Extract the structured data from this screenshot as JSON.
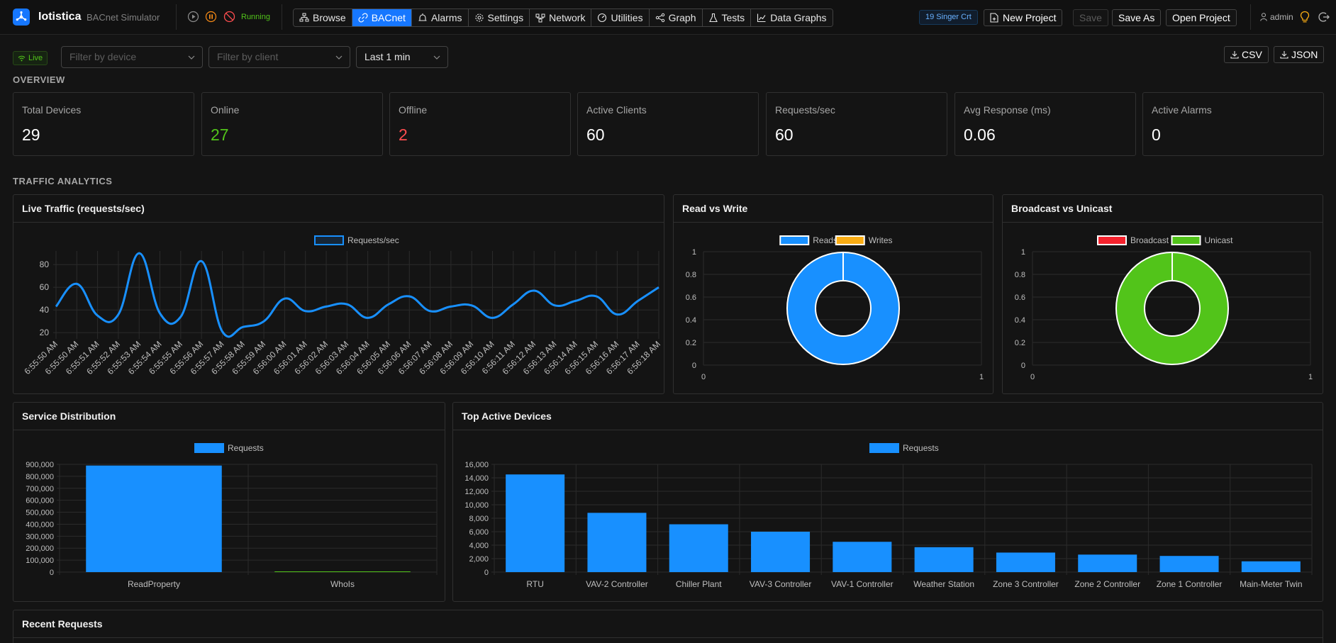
{
  "app": {
    "name": "Iotistica",
    "subtitle": "BACnet Simulator",
    "status": "Running"
  },
  "nav": [
    {
      "label": "Browse",
      "icon": "sitemap-icon"
    },
    {
      "label": "BACnet",
      "icon": "link-icon"
    },
    {
      "label": "Alarms",
      "icon": "alarm-icon"
    },
    {
      "label": "Settings",
      "icon": "gear-icon"
    },
    {
      "label": "Network",
      "icon": "network-icon"
    },
    {
      "label": "Utilities",
      "icon": "gauge-icon"
    },
    {
      "label": "Graph",
      "icon": "share-icon"
    },
    {
      "label": "Tests",
      "icon": "flask-icon"
    },
    {
      "label": "Data Graphs",
      "icon": "line-chart-icon"
    }
  ],
  "nav_active": "BACnet",
  "toolbar": {
    "site": "19 Singer Crt",
    "new_project": "New Project",
    "save": "Save",
    "save_as": "Save As",
    "open_project": "Open Project",
    "user": "admin"
  },
  "filters": {
    "live": "Live",
    "device_placeholder": "Filter by device",
    "client_placeholder": "Filter by client",
    "range": "Last 1 min",
    "csv": "CSV",
    "json": "JSON"
  },
  "overview": {
    "title": "OVERVIEW",
    "cards": [
      {
        "label": "Total Devices",
        "value": "29",
        "color": "#ffffff"
      },
      {
        "label": "Online",
        "value": "27",
        "color": "#52c41a"
      },
      {
        "label": "Offline",
        "value": "2",
        "color": "#ff4d4f"
      },
      {
        "label": "Active Clients",
        "value": "60",
        "color": "#ffffff"
      },
      {
        "label": "Requests/sec",
        "value": "60",
        "color": "#ffffff"
      },
      {
        "label": "Avg Response (ms)",
        "value": "0.06",
        "color": "#ffffff"
      },
      {
        "label": "Active Alarms",
        "value": "0",
        "color": "#ffffff"
      }
    ]
  },
  "traffic": {
    "title": "TRAFFIC ANALYTICS"
  },
  "panels": {
    "live_traffic": "Live Traffic (requests/sec)",
    "read_write": "Read vs Write",
    "broadcast_unicast": "Broadcast vs Unicast",
    "service_distribution": "Service Distribution",
    "top_devices": "Top Active Devices",
    "recent_requests": "Recent Requests"
  },
  "colors": {
    "accent": "#1890ff",
    "green": "#52c41a",
    "red": "#f5222d",
    "orange": "#faad14"
  },
  "chart_data": [
    {
      "type": "line",
      "series": [
        {
          "name": "Requests/sec",
          "color": "#1890ff",
          "values": [
            43,
            63,
            35,
            36,
            90,
            37,
            34,
            83,
            21,
            25,
            30,
            50,
            39,
            43,
            45,
            33,
            45,
            52,
            39,
            43,
            44,
            33,
            45,
            57,
            44,
            48,
            52,
            36,
            48,
            60
          ]
        }
      ],
      "x": [
        "6:55:50 AM",
        "6:55:50 AM",
        "6:55:51 AM",
        "6:55:52 AM",
        "6:55:53 AM",
        "6:55:54 AM",
        "6:55:55 AM",
        "6:55:56 AM",
        "6:55:57 AM",
        "6:55:58 AM",
        "6:55:59 AM",
        "6:56:00 AM",
        "6:56:01 AM",
        "6:56:02 AM",
        "6:56:03 AM",
        "6:56:04 AM",
        "6:56:05 AM",
        "6:56:06 AM",
        "6:56:07 AM",
        "6:56:08 AM",
        "6:56:09 AM",
        "6:56:10 AM",
        "6:56:11 AM",
        "6:56:12 AM",
        "6:56:13 AM",
        "6:56:14 AM",
        "6:56:15 AM",
        "6:56:16 AM",
        "6:56:17 AM",
        "6:56:18 AM"
      ],
      "yticks": [
        20,
        40,
        60,
        80
      ],
      "ylim": [
        17,
        92
      ],
      "grid": true,
      "legend": "top"
    },
    {
      "type": "pie",
      "series": [
        {
          "name": "Reads",
          "color": "#1890ff",
          "value": 1
        },
        {
          "name": "Writes",
          "color": "#faad14",
          "value": 0
        }
      ],
      "yticks": [
        "0",
        "0.2",
        "0.4",
        "0.6",
        "0.8",
        "1"
      ],
      "xticks": [
        "0",
        "1"
      ],
      "legend": "top"
    },
    {
      "type": "pie",
      "series": [
        {
          "name": "Broadcast",
          "color": "#f5222d",
          "value": 0
        },
        {
          "name": "Unicast",
          "color": "#52c41a",
          "value": 1
        }
      ],
      "yticks": [
        "0",
        "0.2",
        "0.4",
        "0.6",
        "0.8",
        "1"
      ],
      "xticks": [
        "0",
        "1"
      ],
      "legend": "top"
    },
    {
      "type": "bar",
      "series": [
        {
          "name": "Requests",
          "color": "#1890ff"
        }
      ],
      "categories": [
        "ReadProperty",
        "WhoIs"
      ],
      "values": [
        890000,
        1200
      ],
      "yticks": [
        "0",
        "100,000",
        "200,000",
        "300,000",
        "400,000",
        "500,000",
        "600,000",
        "700,000",
        "800,000",
        "900,000"
      ],
      "ylim": [
        0,
        900000
      ],
      "legend": "top"
    },
    {
      "type": "bar",
      "series": [
        {
          "name": "Requests",
          "color": "#1890ff"
        }
      ],
      "categories": [
        "RTU",
        "VAV-2 Controller",
        "Chiller Plant",
        "VAV-3 Controller",
        "VAV-1 Controller",
        "Weather Station",
        "Zone 3 Controller",
        "Zone 2 Controller",
        "Zone 1 Controller",
        "Main-Meter Twin"
      ],
      "values": [
        14500,
        8800,
        7100,
        6000,
        4500,
        3700,
        2900,
        2600,
        2400,
        1600
      ],
      "yticks": [
        "0",
        "2,000",
        "4,000",
        "6,000",
        "8,000",
        "10,000",
        "12,000",
        "14,000",
        "16,000"
      ],
      "ylim": [
        0,
        16000
      ],
      "legend": "top"
    }
  ]
}
